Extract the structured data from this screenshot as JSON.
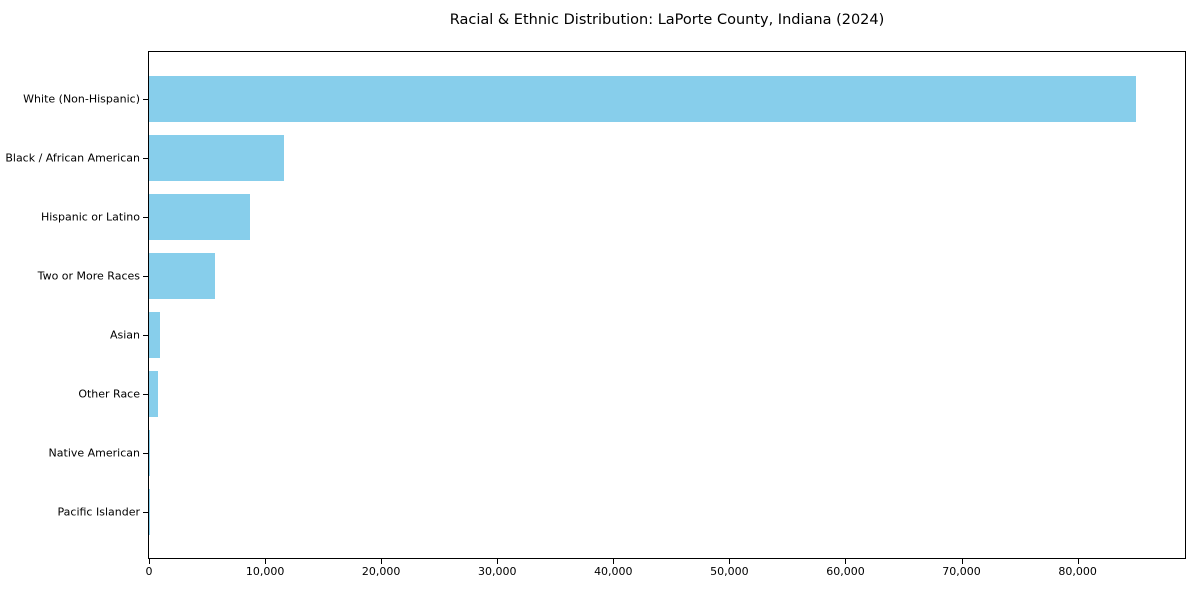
{
  "figure": {
    "background_color": "#ffffff",
    "text_color": "#000000"
  },
  "chart_data": {
    "type": "bar",
    "orientation": "horizontal",
    "title": "Racial & Ethnic Distribution: LaPorte County, Indiana (2024)",
    "xlabel": "",
    "ylabel": "",
    "categories": [
      "White (Non-Hispanic)",
      "Black / African American",
      "Hispanic or Latino",
      "Two or More Races",
      "Asian",
      "Other Race",
      "Native American",
      "Pacific Islander"
    ],
    "values": [
      85000,
      11650,
      8700,
      5700,
      950,
      780,
      100,
      25
    ],
    "xlim": [
      0,
      89250
    ],
    "xticks": [
      0,
      10000,
      20000,
      30000,
      40000,
      50000,
      60000,
      70000,
      80000
    ],
    "xtick_labels": [
      "0",
      "10,000",
      "20,000",
      "30,000",
      "40,000",
      "50,000",
      "60,000",
      "70,000",
      "80,000"
    ],
    "bar_color": "#87CEEB",
    "grid": false,
    "legend": null
  }
}
